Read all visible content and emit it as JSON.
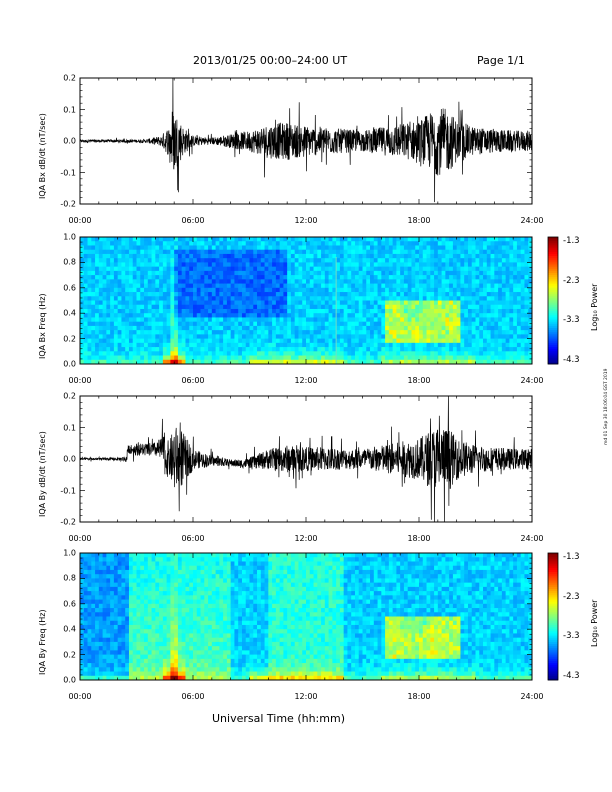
{
  "header": {
    "title": "2013/01/25  00:00–24:00 UT",
    "page": "Page 1/1"
  },
  "x_axis": {
    "label": "Universal Time (hh:mm)",
    "ticks": [
      "00:00",
      "06:00",
      "12:00",
      "18:00",
      "24:00"
    ]
  },
  "stamp": "md 01 Sep 30 18:06:04 GST 2019",
  "colors": {
    "trace": "#000000"
  },
  "colorbar": {
    "label": "Log₁₀ Power",
    "ticks": [
      "-1.3",
      "-2.3",
      "-3.3",
      "-4.3"
    ],
    "range": [
      -4.3,
      -1.3
    ]
  },
  "chart_data": [
    {
      "type": "line",
      "ylabel": "IQA Bx dB/dt (nT/sec)",
      "ylim": [
        -0.2,
        0.2
      ],
      "yticks": [
        "0.2",
        "0.1",
        "0.0",
        "-0.1",
        "-0.2"
      ],
      "xlim_hours": [
        0,
        24
      ],
      "xticks": [
        "00:00",
        "06:00",
        "12:00",
        "18:00",
        "24:00"
      ],
      "series": [
        {
          "envelope": [
            [
              0,
              0.008
            ],
            [
              2,
              0.008
            ],
            [
              3.5,
              0.01
            ],
            [
              4.3,
              0.03
            ],
            [
              4.8,
              0.1
            ],
            [
              4.9,
              0.2
            ],
            [
              5.2,
              0.15
            ],
            [
              5.5,
              0.08
            ],
            [
              6,
              0.03
            ],
            [
              7,
              0.02
            ],
            [
              8,
              0.04
            ],
            [
              9,
              0.06
            ],
            [
              10,
              0.1
            ],
            [
              11,
              0.11
            ],
            [
              12,
              0.09
            ],
            [
              13,
              0.08
            ],
            [
              14,
              0.07
            ],
            [
              15,
              0.06
            ],
            [
              16,
              0.08
            ],
            [
              17,
              0.1
            ],
            [
              18,
              0.12
            ],
            [
              19,
              0.2
            ],
            [
              19.6,
              0.18
            ],
            [
              20,
              0.12
            ],
            [
              21,
              0.08
            ],
            [
              22,
              0.07
            ],
            [
              23,
              0.06
            ],
            [
              24,
              0.06
            ]
          ]
        }
      ]
    },
    {
      "type": "heatmap",
      "ylabel": "IQA Bx Freq (Hz)",
      "ylim": [
        0,
        1.0
      ],
      "yticks": [
        "1.0",
        "0.8",
        "0.6",
        "0.4",
        "0.2",
        "0.0"
      ],
      "xlim_hours": [
        0,
        24
      ],
      "xticks": [
        "00:00",
        "06:00",
        "12:00",
        "18:00",
        "24:00"
      ],
      "colorbar": "Log₁₀ Power"
    },
    {
      "type": "line",
      "ylabel": "IQA By dB/dt (nT/sec)",
      "ylim": [
        -0.2,
        0.2
      ],
      "yticks": [
        "0.2",
        "0.1",
        "0.0",
        "-0.1",
        "-0.2"
      ],
      "xlim_hours": [
        0,
        24
      ],
      "xticks": [
        "00:00",
        "06:00",
        "12:00",
        "18:00",
        "24:00"
      ],
      "series": [
        {
          "envelope": [
            [
              0,
              0.006
            ],
            [
              2,
              0.008
            ],
            [
              2.5,
              0.02
            ],
            [
              3,
              0.035
            ],
            [
              4,
              0.04
            ],
            [
              4.8,
              0.12
            ],
            [
              5,
              0.2
            ],
            [
              5.5,
              0.15
            ],
            [
              6,
              0.06
            ],
            [
              7,
              0.03
            ],
            [
              8,
              0.02
            ],
            [
              9,
              0.03
            ],
            [
              10,
              0.06
            ],
            [
              11,
              0.08
            ],
            [
              12,
              0.07
            ],
            [
              13,
              0.07
            ],
            [
              14,
              0.06
            ],
            [
              15,
              0.06
            ],
            [
              16,
              0.08
            ],
            [
              17,
              0.1
            ],
            [
              18,
              0.12
            ],
            [
              19,
              0.2
            ],
            [
              19.6,
              0.18
            ],
            [
              20,
              0.12
            ],
            [
              21,
              0.08
            ],
            [
              22,
              0.07
            ],
            [
              23,
              0.06
            ],
            [
              24,
              0.06
            ]
          ]
        }
      ]
    },
    {
      "type": "heatmap",
      "ylabel": "IQA By Freq (Hz)",
      "ylim": [
        0,
        1.0
      ],
      "yticks": [
        "1.0",
        "0.8",
        "0.6",
        "0.4",
        "0.2",
        "0.0"
      ],
      "xlim_hours": [
        0,
        24
      ],
      "xticks": [
        "00:00",
        "06:00",
        "12:00",
        "18:00",
        "24:00"
      ],
      "colorbar": "Log₁₀ Power"
    }
  ]
}
